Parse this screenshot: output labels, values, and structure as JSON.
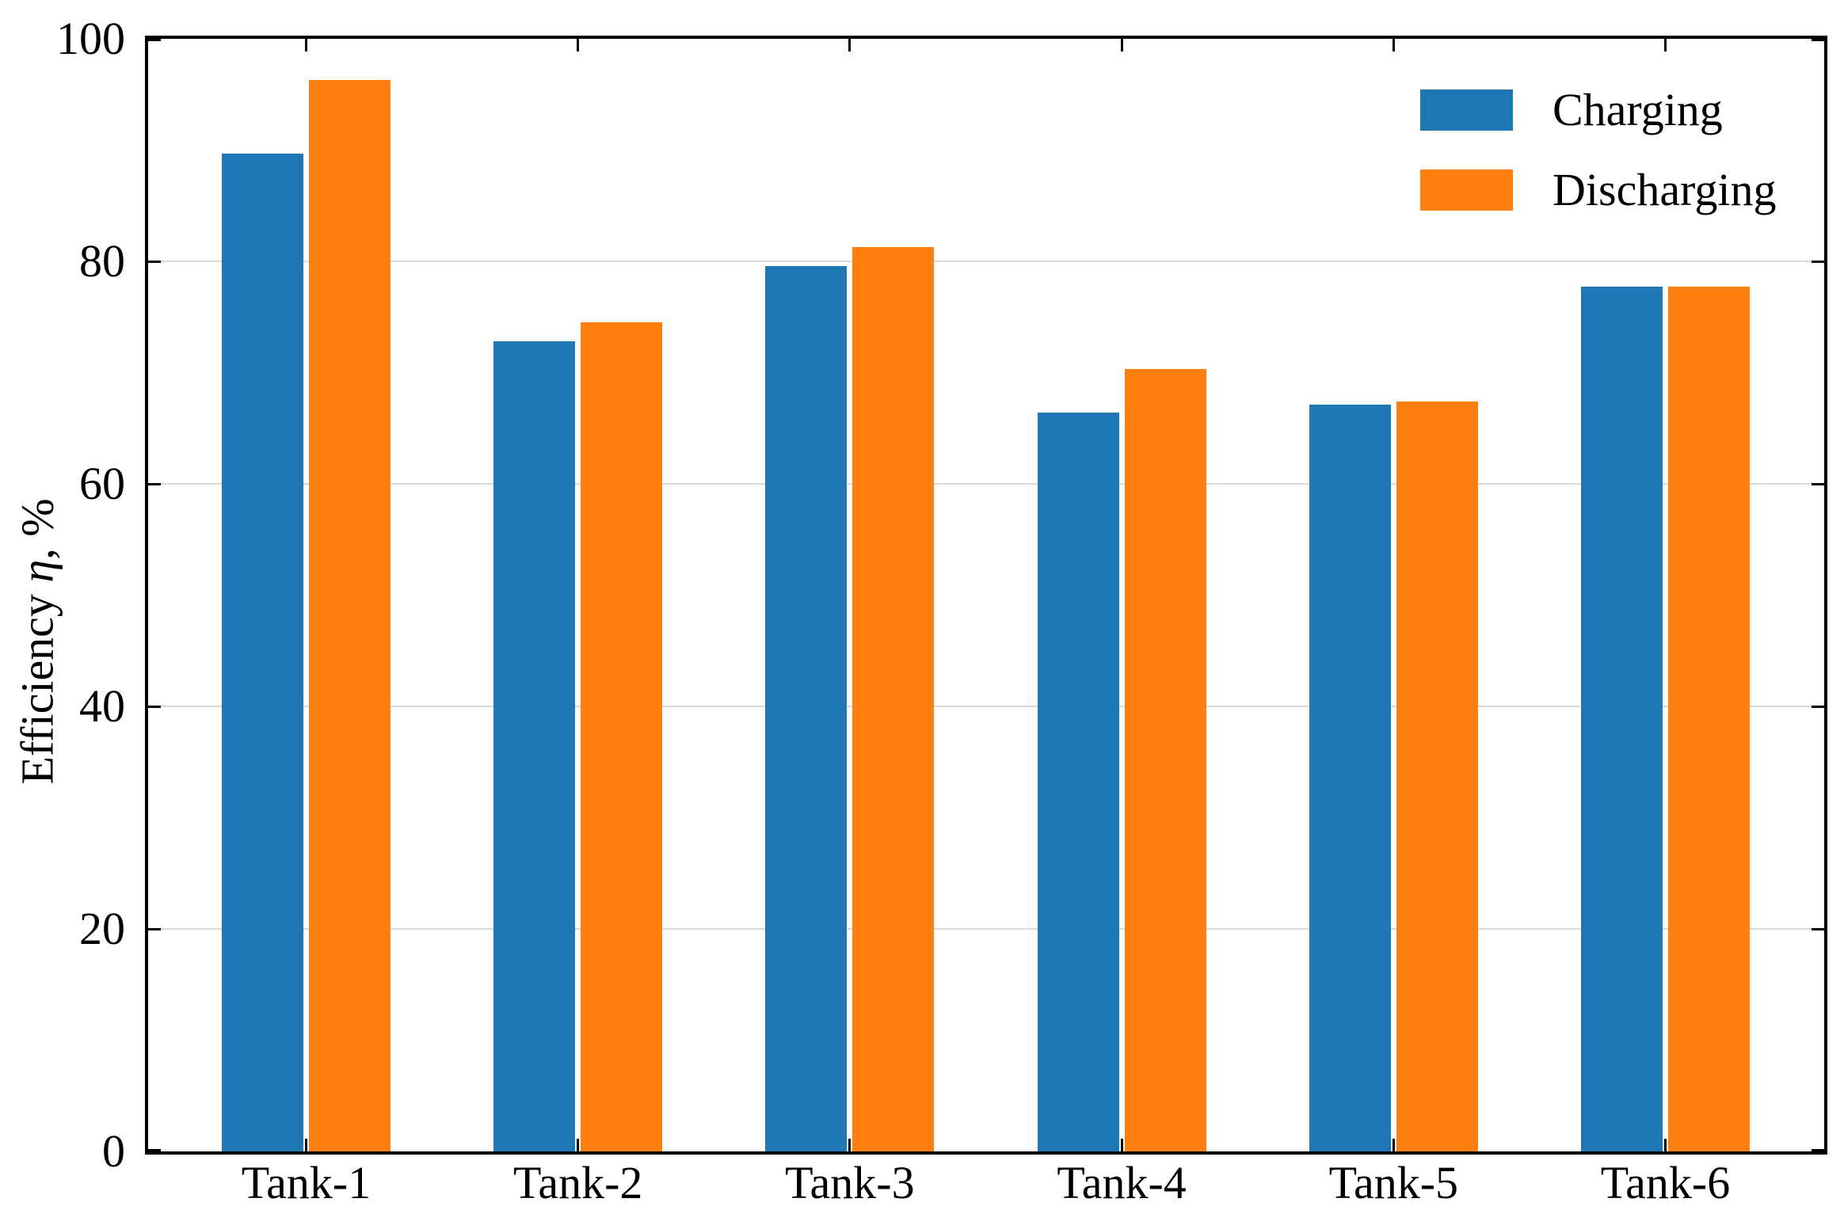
{
  "chart_data": {
    "type": "bar",
    "title": "",
    "categories": [
      "Tank-1",
      "Tank-2",
      "Tank-3",
      "Tank-4",
      "Tank-5",
      "Tank-6"
    ],
    "series": [
      {
        "name": "Charging",
        "color": "#1f77b4",
        "values": [
          89.7,
          72.8,
          79.6,
          66.4,
          67.1,
          77.7
        ]
      },
      {
        "name": "Discharging",
        "color": "#ff7f0e",
        "values": [
          96.3,
          74.5,
          81.3,
          70.3,
          67.4,
          77.7
        ]
      }
    ],
    "xlabel": "",
    "ylabel": "Efficiency η, %",
    "ylabel_parts": {
      "prefix": "Efficiency ",
      "symbol": "η",
      "suffix": ", %"
    },
    "ylim": [
      0,
      100
    ],
    "yticks": [
      0,
      20,
      40,
      60,
      80,
      100
    ],
    "gridline_values": [
      20,
      40,
      60,
      80
    ],
    "grid": "horizontal",
    "legend_position": "upper-right",
    "axis_color": "#000000",
    "grid_color": "#d9d9d9",
    "tick_direction": "in"
  }
}
